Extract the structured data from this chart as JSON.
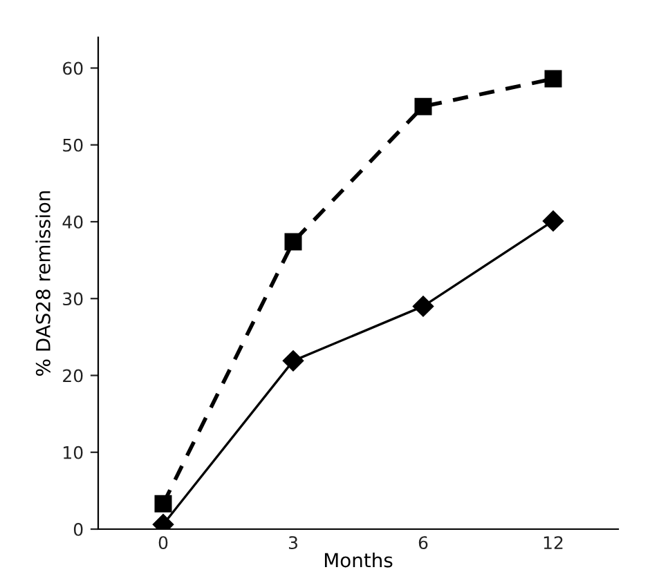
{
  "chart_data": {
    "type": "line",
    "xlabel": "Months",
    "ylabel": "% DAS28 remission",
    "categories": [
      "0",
      "3",
      "6",
      "12"
    ],
    "series": [
      {
        "color": "#000000",
        "values": [
          3.3,
          37.4,
          55.0,
          58.6
        ],
        "marker": "square",
        "line_style": "dashed"
      },
      {
        "color": "#000000",
        "values": [
          0.6,
          21.9,
          29.0,
          40.1
        ],
        "marker": "diamond",
        "line_style": "solid"
      }
    ],
    "ylim": [
      0,
      64
    ],
    "yticks": [
      0,
      10,
      20,
      30,
      40,
      50,
      60
    ],
    "grid": false,
    "legend": false
  }
}
